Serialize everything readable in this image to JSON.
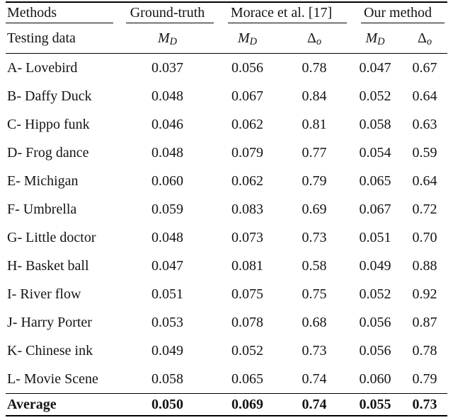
{
  "table": {
    "header": {
      "col1_row1": "Methods",
      "col1_row2": "Testing data",
      "groups": [
        {
          "label": "Ground-truth"
        },
        {
          "label": "Morace et al. [17]"
        },
        {
          "label": "Our method"
        }
      ],
      "sub_headers": [
        {
          "main": "M",
          "sub": "D"
        },
        {
          "main": "M",
          "sub": "D"
        },
        {
          "main": "Δ",
          "sub": "o"
        },
        {
          "main": "M",
          "sub": "D"
        },
        {
          "main": "Δ",
          "sub": "o"
        }
      ]
    },
    "rows": [
      {
        "label": "A- Lovebird",
        "values": [
          "0.037",
          "0.056",
          "0.78",
          "0.047",
          "0.67"
        ]
      },
      {
        "label": "B- Daffy Duck",
        "values": [
          "0.048",
          "0.067",
          "0.84",
          "0.052",
          "0.64"
        ]
      },
      {
        "label": "C- Hippo funk",
        "values": [
          "0.046",
          "0.062",
          "0.81",
          "0.058",
          "0.63"
        ]
      },
      {
        "label": "D- Frog dance",
        "values": [
          "0.048",
          "0.079",
          "0.77",
          "0.054",
          "0.59"
        ]
      },
      {
        "label": "E- Michigan",
        "values": [
          "0.060",
          "0.062",
          "0.79",
          "0.065",
          "0.64"
        ]
      },
      {
        "label": "F- Umbrella",
        "values": [
          "0.059",
          "0.083",
          "0.69",
          "0.067",
          "0.72"
        ]
      },
      {
        "label": "G- Little doctor",
        "values": [
          "0.048",
          "0.073",
          "0.73",
          "0.051",
          "0.70"
        ]
      },
      {
        "label": "H- Basket ball",
        "values": [
          "0.047",
          "0.081",
          "0.58",
          "0.049",
          "0.88"
        ]
      },
      {
        "label": "I- River flow",
        "values": [
          "0.051",
          "0.075",
          "0.75",
          "0.052",
          "0.92"
        ]
      },
      {
        "label": "J- Harry Porter",
        "values": [
          "0.053",
          "0.078",
          "0.68",
          "0.056",
          "0.87"
        ]
      },
      {
        "label": "K- Chinese ink",
        "values": [
          "0.049",
          "0.052",
          "0.73",
          "0.056",
          "0.78"
        ]
      },
      {
        "label": "L- Movie Scene",
        "values": [
          "0.058",
          "0.065",
          "0.74",
          "0.060",
          "0.79"
        ]
      }
    ],
    "average": {
      "label": "Average",
      "values": [
        "0.050",
        "0.069",
        "0.74",
        "0.055",
        "0.73"
      ]
    }
  },
  "colors": {
    "text": "#141414",
    "rule": "#000000",
    "background": "#ffffff"
  }
}
